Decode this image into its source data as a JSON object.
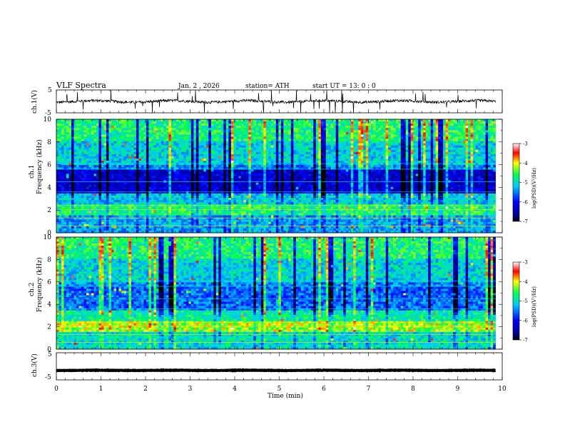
{
  "header": {
    "title": "VLF  Spectra",
    "date": "Jan.  2  , 2026",
    "station": "station= ATH",
    "start": "start  UT  =    13: 0   : 0"
  },
  "chart_data": [
    {
      "type": "line",
      "name": "channel-1-waveform",
      "ylabel": "ch.1(V)",
      "ylim": [
        -5,
        5
      ],
      "yticks": [
        "5",
        "-5"
      ],
      "baseline": 0,
      "xlim": [
        0,
        10
      ]
    },
    {
      "type": "heatmap",
      "name": "channel-1-spectrogram",
      "ylabel_top": "ch.1",
      "ylabel": "Frequency  (kHz)",
      "ylim": [
        0,
        10
      ],
      "yticks": [
        "0",
        "2",
        "4",
        "6",
        "8",
        "10"
      ],
      "xlim": [
        0,
        10
      ],
      "data_xmax": 9.85,
      "colorbar": {
        "label": "log(PSD)(V²/Hz)",
        "ticks": [
          "-3",
          "-4",
          "-5",
          "-6",
          "-7"
        ],
        "range": [
          -7,
          -3
        ]
      }
    },
    {
      "type": "heatmap",
      "name": "channel-2-spectrogram",
      "ylabel_top": "ch.2",
      "ylabel": "Frequency  (kHz)",
      "ylim": [
        0,
        10
      ],
      "yticks": [
        "0",
        "2",
        "4",
        "6",
        "8",
        "10"
      ],
      "xlim": [
        0,
        10
      ],
      "data_xmax": 9.85,
      "colorbar": {
        "label": "log(PSD)(V²/Hz)",
        "ticks": [
          "-3",
          "-4",
          "-5",
          "-6",
          "-7"
        ],
        "range": [
          -7,
          -3
        ]
      }
    },
    {
      "type": "line",
      "name": "channel-3-waveform",
      "ylabel": "ch.3(V)",
      "ylim": [
        -5,
        5
      ],
      "yticks": [
        "5",
        "-5"
      ],
      "baseline": -1.5,
      "xlim": [
        0,
        10
      ]
    }
  ],
  "xaxis": {
    "label": "Time  (min)",
    "ticks": [
      "0",
      "1",
      "2",
      "3",
      "4",
      "5",
      "6",
      "7",
      "8",
      "9",
      "10"
    ],
    "range": [
      0,
      10
    ]
  }
}
